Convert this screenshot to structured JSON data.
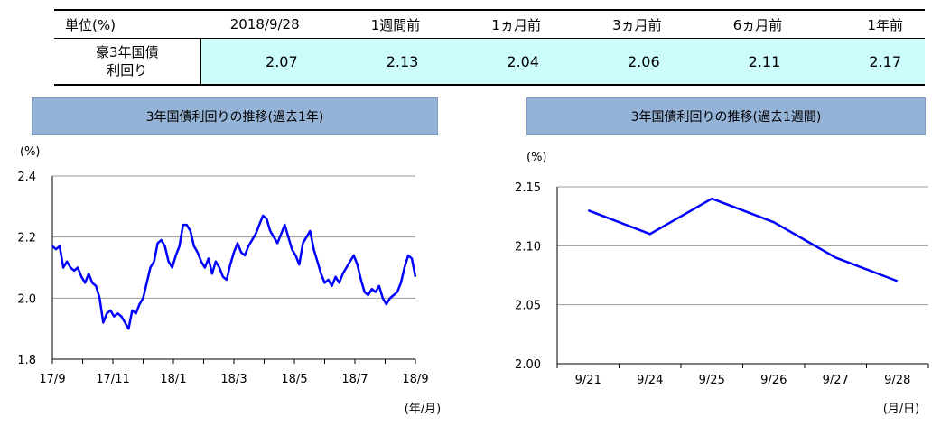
{
  "table": {
    "headers": [
      "単位(%)",
      "2018/9/28",
      "1週間前",
      "1ヵ月前",
      "3ヵ月前",
      "6ヵ月前",
      "1年前"
    ],
    "row_label_line1": "豪3年国債",
    "row_label_line2": "利回り",
    "values": [
      "2.07",
      "2.13",
      "2.04",
      "2.06",
      "2.11",
      "2.17"
    ]
  },
  "chart_data": [
    {
      "type": "line",
      "title": "3年国債利回りの推移(過去1年)",
      "ylabel": "(%)",
      "xlabel": "(年/月)",
      "ylim": [
        1.8,
        2.4
      ],
      "yticks": [
        "2.4",
        "2.2",
        "2.0",
        "1.8"
      ],
      "xticks": [
        "17/9",
        "17/11",
        "18/1",
        "18/3",
        "18/5",
        "18/7",
        "18/9"
      ],
      "color": "#0000ff",
      "grid": true,
      "series": [
        {
          "x": [
            0,
            1,
            2,
            3,
            4,
            5,
            6,
            7,
            8,
            9,
            10,
            11,
            12,
            13,
            14,
            15,
            16,
            17,
            18,
            19,
            20,
            21,
            22,
            23,
            24,
            25,
            26,
            27,
            28,
            29,
            30,
            31,
            32,
            33,
            34,
            35,
            36,
            37,
            38,
            39,
            40,
            41,
            42,
            43,
            44,
            45,
            46,
            47,
            48,
            49,
            50,
            51,
            52,
            53,
            54,
            55,
            56,
            57,
            58,
            59,
            60,
            61,
            62,
            63,
            64,
            65,
            66,
            67,
            68,
            69,
            70,
            71,
            72,
            73,
            74,
            75,
            76,
            77,
            78,
            79,
            80,
            81,
            82,
            83,
            84,
            85,
            86,
            87,
            88,
            89,
            90,
            91,
            92,
            93,
            94,
            95,
            96,
            97,
            98,
            99,
            100
          ],
          "values": [
            2.17,
            2.16,
            2.17,
            2.1,
            2.12,
            2.1,
            2.09,
            2.1,
            2.07,
            2.05,
            2.08,
            2.05,
            2.04,
            2.0,
            1.92,
            1.95,
            1.96,
            1.94,
            1.95,
            1.94,
            1.92,
            1.9,
            1.96,
            1.95,
            1.98,
            2.0,
            2.05,
            2.1,
            2.12,
            2.18,
            2.19,
            2.17,
            2.12,
            2.1,
            2.14,
            2.17,
            2.24,
            2.24,
            2.22,
            2.17,
            2.15,
            2.12,
            2.1,
            2.13,
            2.08,
            2.12,
            2.1,
            2.07,
            2.06,
            2.11,
            2.15,
            2.18,
            2.15,
            2.14,
            2.17,
            2.19,
            2.21,
            2.24,
            2.27,
            2.26,
            2.22,
            2.2,
            2.18,
            2.21,
            2.24,
            2.2,
            2.16,
            2.14,
            2.11,
            2.18,
            2.2,
            2.22,
            2.16,
            2.12,
            2.08,
            2.05,
            2.06,
            2.04,
            2.07,
            2.05,
            2.08,
            2.1,
            2.12,
            2.14,
            2.11,
            2.06,
            2.02,
            2.01,
            2.03,
            2.02,
            2.04,
            2.0,
            1.98,
            2.0,
            2.01,
            2.02,
            2.05,
            2.1,
            2.14,
            2.13,
            2.07
          ]
        }
      ]
    },
    {
      "type": "line",
      "title": "3年国債利回りの推移(過去1週間)",
      "ylabel": "(%)",
      "xlabel": "(月/日)",
      "ylim": [
        2.0,
        2.15
      ],
      "yticks": [
        "2.15",
        "2.10",
        "2.05",
        "2.00"
      ],
      "categories": [
        "9/21",
        "9/24",
        "9/25",
        "9/26",
        "9/27",
        "9/28"
      ],
      "color": "#0000ff",
      "grid": true,
      "series": [
        {
          "values": [
            2.13,
            2.11,
            2.14,
            2.12,
            2.09,
            2.07
          ]
        }
      ]
    }
  ]
}
